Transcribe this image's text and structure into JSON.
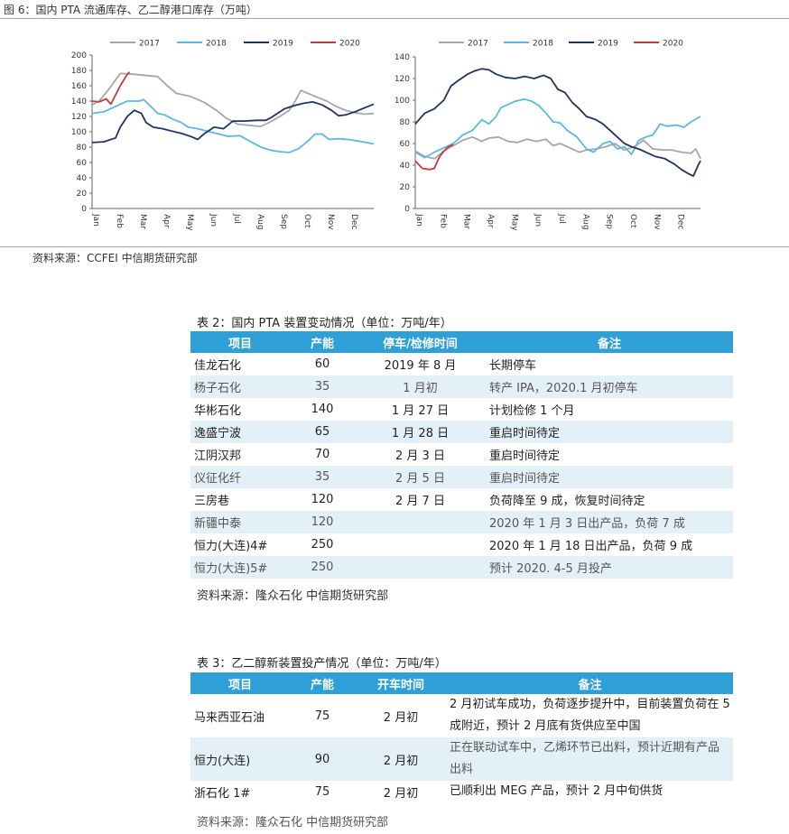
{
  "figure": {
    "title": "图 6：国内 PTA 流通库存、乙二醇港口库存（万吨）",
    "source": "资料来源：CCFEI 中信期货研究部"
  },
  "chart_data": [
    {
      "type": "line",
      "title": "",
      "months": [
        "Jan",
        "Feb",
        "Mar",
        "Apr",
        "May",
        "Jun",
        "Jul",
        "Aug",
        "Sep",
        "Oct",
        "Nov",
        "Dec"
      ],
      "ylim": [
        0,
        200
      ],
      "yticks": [
        0,
        20,
        40,
        60,
        80,
        100,
        120,
        140,
        160,
        180,
        200
      ],
      "grid": false,
      "legend": "top",
      "series": [
        {
          "name": "2017",
          "color": "#a6a6a6",
          "points": [
            [
              0,
              135
            ],
            [
              0.3,
              140
            ],
            [
              0.7,
              155
            ],
            [
              1.2,
              176
            ],
            [
              1.8,
              175
            ],
            [
              2.8,
              172
            ],
            [
              3.2,
              160
            ],
            [
              3.6,
              150
            ],
            [
              4.2,
              146
            ],
            [
              4.8,
              138
            ],
            [
              5.3,
              128
            ],
            [
              5.7,
              118
            ],
            [
              6.2,
              110
            ],
            [
              6.8,
              108
            ],
            [
              7.2,
              107
            ],
            [
              7.6,
              113
            ],
            [
              8.0,
              120
            ],
            [
              8.4,
              128
            ],
            [
              8.6,
              137
            ],
            [
              8.9,
              154
            ],
            [
              9.2,
              150
            ],
            [
              9.6,
              145
            ],
            [
              10.0,
              140
            ],
            [
              10.4,
              133
            ],
            [
              10.8,
              128
            ],
            [
              11.2,
              125
            ],
            [
              11.6,
              123
            ],
            [
              12,
              124
            ]
          ]
        },
        {
          "name": "2018",
          "color": "#5bb7e5",
          "points": [
            [
              0,
              124
            ],
            [
              0.5,
              126
            ],
            [
              1.0,
              133
            ],
            [
              1.5,
              140
            ],
            [
              2.0,
              140
            ],
            [
              2.2,
              142
            ],
            [
              2.5,
              133
            ],
            [
              2.8,
              124
            ],
            [
              3.1,
              122
            ],
            [
              3.4,
              117
            ],
            [
              3.8,
              112
            ],
            [
              4.1,
              106
            ],
            [
              4.5,
              104
            ],
            [
              5.0,
              100
            ],
            [
              5.4,
              97
            ],
            [
              5.8,
              94
            ],
            [
              6.3,
              95
            ],
            [
              6.7,
              88
            ],
            [
              7.2,
              80
            ],
            [
              7.6,
              76
            ],
            [
              8.0,
              74
            ],
            [
              8.4,
              73
            ],
            [
              8.8,
              78
            ],
            [
              9.2,
              88
            ],
            [
              9.5,
              97
            ],
            [
              9.8,
              97
            ],
            [
              10.1,
              90
            ],
            [
              10.5,
              91
            ],
            [
              10.9,
              90
            ],
            [
              11.3,
              88
            ],
            [
              11.7,
              86
            ],
            [
              12,
              84
            ]
          ]
        },
        {
          "name": "2019",
          "color": "#1f3560",
          "points": [
            [
              0,
              86
            ],
            [
              0.5,
              87
            ],
            [
              1.0,
              92
            ],
            [
              1.2,
              106
            ],
            [
              1.5,
              120
            ],
            [
              1.8,
              128
            ],
            [
              2.1,
              124
            ],
            [
              2.3,
              112
            ],
            [
              2.6,
              106
            ],
            [
              3.0,
              104
            ],
            [
              3.4,
              101
            ],
            [
              3.8,
              98
            ],
            [
              4.2,
              94
            ],
            [
              4.5,
              90
            ],
            [
              4.8,
              98
            ],
            [
              5.2,
              106
            ],
            [
              5.6,
              104
            ],
            [
              6.0,
              114
            ],
            [
              6.5,
              114
            ],
            [
              7.0,
              115
            ],
            [
              7.4,
              115
            ],
            [
              7.6,
              118
            ],
            [
              7.9,
              124
            ],
            [
              8.2,
              130
            ],
            [
              8.6,
              134
            ],
            [
              9.0,
              137
            ],
            [
              9.4,
              139
            ],
            [
              9.8,
              135
            ],
            [
              10.2,
              128
            ],
            [
              10.5,
              121
            ],
            [
              10.8,
              122
            ],
            [
              11.2,
              126
            ],
            [
              11.6,
              131
            ],
            [
              12,
              136
            ]
          ]
        },
        {
          "name": "2020",
          "color": "#c83a3a",
          "points": [
            [
              0,
              140
            ],
            [
              0.3,
              139
            ],
            [
              0.6,
              143
            ],
            [
              0.8,
              136
            ],
            [
              1.0,
              148
            ],
            [
              1.2,
              160
            ],
            [
              1.5,
              175
            ],
            [
              1.6,
              178
            ]
          ]
        }
      ]
    },
    {
      "type": "line",
      "title": "",
      "months": [
        "Jan",
        "Feb",
        "Mar",
        "Apr",
        "May",
        "Jun",
        "Jul",
        "Aug",
        "Sep",
        "Oct",
        "Nov",
        "Dec"
      ],
      "ylim": [
        0,
        140
      ],
      "yticks": [
        0,
        20,
        40,
        60,
        80,
        100,
        120,
        140
      ],
      "grid": false,
      "legend": "top",
      "series": [
        {
          "name": "2017",
          "color": "#a6a6a6",
          "points": [
            [
              0,
              53
            ],
            [
              0.4,
              48
            ],
            [
              0.8,
              46
            ],
            [
              1.2,
              53
            ],
            [
              1.6,
              58
            ],
            [
              2.0,
              63
            ],
            [
              2.4,
              66
            ],
            [
              2.8,
              62
            ],
            [
              3.1,
              65
            ],
            [
              3.5,
              66
            ],
            [
              3.9,
              62
            ],
            [
              4.3,
              61
            ],
            [
              4.7,
              64
            ],
            [
              5.1,
              62
            ],
            [
              5.5,
              64
            ],
            [
              5.8,
              58
            ],
            [
              6.1,
              60
            ],
            [
              6.5,
              56
            ],
            [
              6.9,
              52
            ],
            [
              7.2,
              54
            ],
            [
              7.6,
              55
            ],
            [
              8.0,
              57
            ],
            [
              8.4,
              60
            ],
            [
              8.8,
              54
            ],
            [
              9.2,
              57
            ],
            [
              9.6,
              63
            ],
            [
              10.0,
              55
            ],
            [
              10.4,
              54
            ],
            [
              10.8,
              54
            ],
            [
              11.2,
              52
            ],
            [
              11.6,
              51
            ],
            [
              11.8,
              55
            ],
            [
              12,
              46
            ]
          ]
        },
        {
          "name": "2018",
          "color": "#5bb7e5",
          "points": [
            [
              0,
              52
            ],
            [
              0.4,
              47
            ],
            [
              0.8,
              52
            ],
            [
              1.2,
              56
            ],
            [
              1.6,
              60
            ],
            [
              2.0,
              68
            ],
            [
              2.4,
              72
            ],
            [
              2.8,
              82
            ],
            [
              3.1,
              78
            ],
            [
              3.4,
              85
            ],
            [
              3.6,
              93
            ],
            [
              3.9,
              96
            ],
            [
              4.2,
              99
            ],
            [
              4.6,
              101
            ],
            [
              4.9,
              99
            ],
            [
              5.2,
              95
            ],
            [
              5.5,
              88
            ],
            [
              5.8,
              80
            ],
            [
              6.1,
              79
            ],
            [
              6.4,
              72
            ],
            [
              6.8,
              66
            ],
            [
              7.2,
              55
            ],
            [
              7.5,
              52
            ],
            [
              7.9,
              60
            ],
            [
              8.2,
              62
            ],
            [
              8.5,
              55
            ],
            [
              8.8,
              57
            ],
            [
              9.1,
              50
            ],
            [
              9.4,
              63
            ],
            [
              9.7,
              66
            ],
            [
              10.0,
              68
            ],
            [
              10.3,
              78
            ],
            [
              10.6,
              76
            ],
            [
              11.0,
              77
            ],
            [
              11.3,
              75
            ],
            [
              11.6,
              80
            ],
            [
              12,
              85
            ]
          ]
        },
        {
          "name": "2019",
          "color": "#1f3560",
          "points": [
            [
              0,
              78
            ],
            [
              0.4,
              88
            ],
            [
              0.8,
              92
            ],
            [
              1.2,
              100
            ],
            [
              1.5,
              113
            ],
            [
              1.8,
              118
            ],
            [
              2.2,
              124
            ],
            [
              2.5,
              127
            ],
            [
              2.8,
              129
            ],
            [
              3.1,
              128
            ],
            [
              3.4,
              124
            ],
            [
              3.8,
              121
            ],
            [
              4.2,
              120
            ],
            [
              4.6,
              122
            ],
            [
              5.0,
              120
            ],
            [
              5.4,
              123
            ],
            [
              5.7,
              120
            ],
            [
              6.0,
              110
            ],
            [
              6.3,
              107
            ],
            [
              6.6,
              98
            ],
            [
              6.9,
              92
            ],
            [
              7.2,
              85
            ],
            [
              7.6,
              82
            ],
            [
              7.9,
              78
            ],
            [
              8.2,
              72
            ],
            [
              8.5,
              66
            ],
            [
              8.8,
              60
            ],
            [
              9.1,
              57
            ],
            [
              9.4,
              55
            ],
            [
              9.7,
              52
            ],
            [
              10.1,
              48
            ],
            [
              10.5,
              46
            ],
            [
              10.9,
              41
            ],
            [
              11.2,
              36
            ],
            [
              11.5,
              32
            ],
            [
              11.7,
              30
            ],
            [
              11.9,
              40
            ],
            [
              12,
              44
            ]
          ]
        },
        {
          "name": "2020",
          "color": "#c83a3a",
          "points": [
            [
              0,
              44
            ],
            [
              0.3,
              37
            ],
            [
              0.6,
              36
            ],
            [
              0.8,
              37
            ],
            [
              1.0,
              47
            ],
            [
              1.2,
              53
            ],
            [
              1.4,
              57
            ],
            [
              1.6,
              59
            ]
          ]
        }
      ]
    }
  ],
  "table2": {
    "title": "表 2：国内 PTA 装置变动情况（单位：万吨/年）",
    "headers": [
      "项目",
      "产能",
      "停车/检修时间",
      "备注"
    ],
    "rows": [
      {
        "name": "佳龙石化",
        "cap": "60",
        "time": "2019 年 8 月",
        "note": "长期停车"
      },
      {
        "name": "杨子石化",
        "cap": "35",
        "time": "1 月初",
        "note": "转产 IPA，2020.1 月初停车"
      },
      {
        "name": "华彬石化",
        "cap": "140",
        "time": "1 月 27 日",
        "note": "计划检修 1 个月"
      },
      {
        "name": "逸盛宁波",
        "cap": "65",
        "time": "1 月 28 日",
        "note": "重启时间待定"
      },
      {
        "name": "江阴汉邦",
        "cap": "70",
        "time": "2 月 3 日",
        "note": "重启时间待定"
      },
      {
        "name": "仪征化纤",
        "cap": "35",
        "time": "2 月 5 日",
        "note": "重启时间待定"
      },
      {
        "name": "三房巷",
        "cap": "120",
        "time": "2 月 7 日",
        "note": "负荷降至 9 成，恢复时间待定"
      },
      {
        "name": "新疆中泰",
        "cap": "120",
        "time": "",
        "note": "2020 年 1 月 3 日出产品，负荷 7 成"
      },
      {
        "name": "恒力(大连)4#",
        "cap": "250",
        "time": "",
        "note": "2020 年 1 月 18 日出产品，负荷 9 成"
      },
      {
        "name": "恒力(大连)5#",
        "cap": "250",
        "time": "",
        "note": "预计 2020. 4-5 月投产"
      }
    ],
    "source": "资料来源：隆众石化 中信期货研究部"
  },
  "table3": {
    "title": "表 3：乙二醇新装置投产情况（单位：万吨/年）",
    "headers": [
      "项目",
      "产能",
      "开车时间",
      "备注"
    ],
    "rows": [
      {
        "name": "马来西亚石油",
        "cap": "75",
        "time": "2 月初",
        "note": "2 月初试车成功，负荷逐步提升中，目前装置负荷在 5 成附近，预计 2 月底有货供应至中国"
      },
      {
        "name": "恒力(大连)",
        "cap": "90",
        "time": "2 月初",
        "note": "正在联动试车中，乙烯环节已出料，预计近期有产品出料"
      },
      {
        "name": "浙石化 1#",
        "cap": "75",
        "time": "2 月初",
        "note": "已顺利出 MEG 产品，预计 2 月中旬供货"
      }
    ],
    "source": "资料来源：隆众石化 中信期货研究部"
  }
}
